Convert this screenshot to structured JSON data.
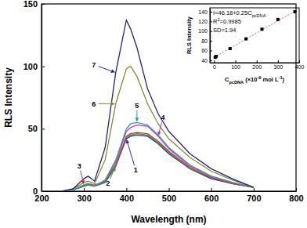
{
  "chart_data": [
    {
      "type": "line",
      "x_label": "Wavelength (nm)",
      "y_label": "RLS Intensity",
      "x": [
        250,
        275,
        300,
        310,
        325,
        350,
        375,
        400,
        410,
        425,
        450,
        475,
        500,
        550,
        600,
        650,
        700
      ],
      "series": [
        {
          "name": "1",
          "color": "#2e2e9a",
          "values": [
            0,
            1,
            4,
            5,
            4,
            7,
            20,
            42,
            44,
            45,
            44,
            38,
            30,
            18,
            10,
            6,
            3
          ]
        },
        {
          "name": "2",
          "color": "#2f9a2f",
          "values": [
            0,
            1,
            4,
            5,
            4,
            7,
            20,
            43,
            45,
            46,
            45,
            39,
            31,
            18,
            11,
            6,
            3
          ]
        },
        {
          "name": "3",
          "color": "#d03030",
          "values": [
            0,
            1,
            5,
            6,
            5,
            8,
            21,
            44,
            46,
            47,
            46,
            40,
            32,
            19,
            11,
            6,
            3
          ]
        },
        {
          "name": "4",
          "color": "#c030c0",
          "values": [
            0,
            1,
            5,
            6,
            4,
            8,
            23,
            48,
            51,
            53,
            52,
            44,
            34,
            20,
            12,
            7,
            3
          ]
        },
        {
          "name": "5",
          "color": "#30a0a0",
          "values": [
            0,
            1,
            5,
            6,
            4,
            9,
            25,
            50,
            54,
            55,
            53,
            45,
            35,
            21,
            12,
            7,
            3
          ]
        },
        {
          "name": "6",
          "color": "#8a8a30",
          "values": [
            0,
            2,
            7,
            8,
            6,
            25,
            70,
            98,
            100,
            92,
            70,
            54,
            42,
            27,
            16,
            9,
            3
          ]
        },
        {
          "name": "7",
          "color": "#23237f",
          "values": [
            0,
            2,
            10,
            12,
            8,
            35,
            95,
            137,
            130,
            115,
            82,
            62,
            48,
            30,
            18,
            10,
            3
          ]
        }
      ],
      "xlim": [
        200,
        800
      ],
      "ylim": [
        0,
        150
      ],
      "xticks": [
        200,
        300,
        400,
        500,
        600,
        700,
        800
      ],
      "yticks": [
        0,
        50,
        100,
        150
      ]
    },
    {
      "type": "scatter",
      "x_label": [
        "C",
        {
          "sub": "pcDNA"
        },
        " (×10",
        {
          "sup": "-9"
        },
        " mol L",
        {
          "sup": "-1"
        },
        ")"
      ],
      "y_label": "RLS Intensity",
      "x": [
        5,
        10,
        75,
        150,
        225,
        300,
        380
      ],
      "values": [
        46,
        48,
        64,
        84,
        104,
        124,
        140
      ],
      "color": "#000000",
      "marker": "square",
      "fit": {
        "x": [
          0,
          380
        ],
        "values": [
          46.18,
          141.18
        ],
        "color": "#e05050",
        "line_style": "dotted"
      },
      "annotations": [
        [
          "I=46.18+0.25C",
          {
            "sub": "pcDNA"
          }
        ],
        [
          "R",
          {
            "sup": "2"
          },
          "=0.9985"
        ],
        [
          "SD=1.94"
        ]
      ],
      "xlim": [
        -20,
        400
      ],
      "ylim": [
        35,
        148
      ],
      "xticks": [
        0,
        100,
        200,
        300,
        400
      ],
      "yticks": [
        40,
        60,
        80,
        100,
        120,
        140
      ]
    }
  ]
}
